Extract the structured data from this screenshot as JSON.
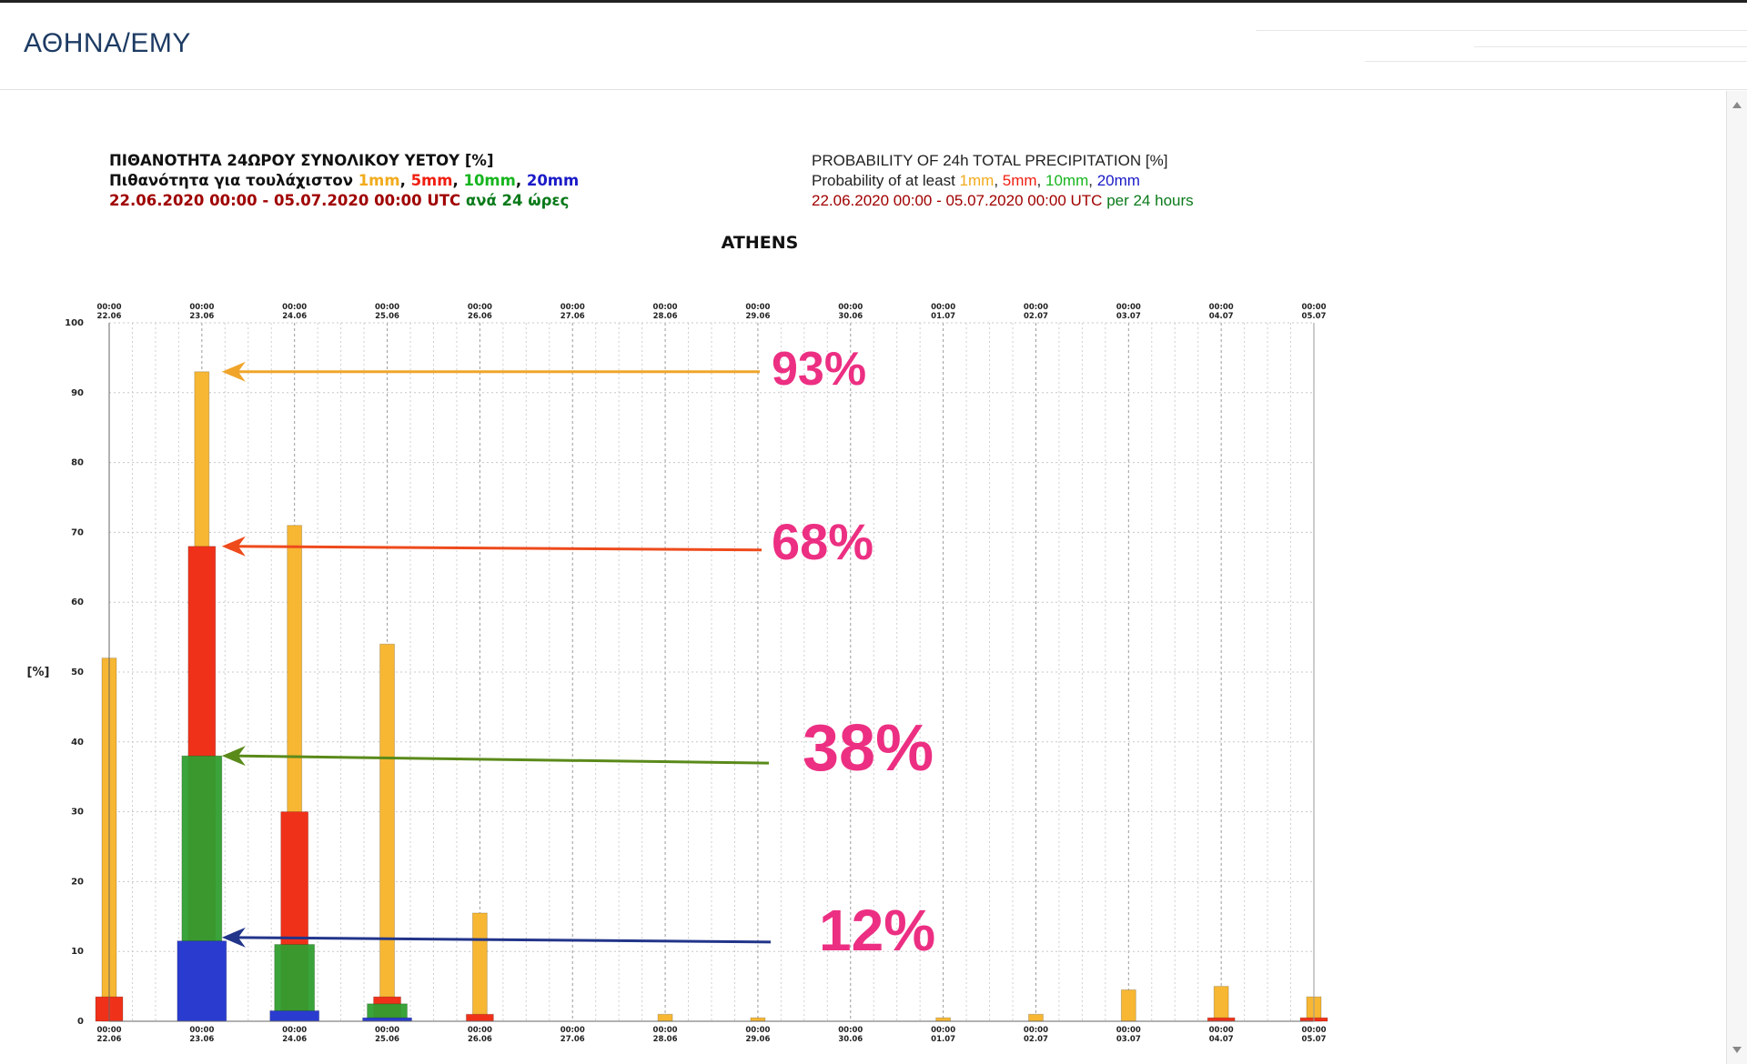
{
  "header": {
    "site_title": "ΑΘΗΝΑ/ΕΜΥ"
  },
  "heading_gr": {
    "line1": "ΠΙΘΑΝΟΤΗΤΑ 24ΩΡΟΥ ΣΥΝΟΛΙΚΟΥ ΥΕΤΟΥ [%]",
    "line2_prefix": "Πιθανότητα για τουλάχιστον ",
    "t1": "1mm",
    "t5": "5mm",
    "t10": "10mm",
    "t20": "20mm",
    "sep": ", ",
    "line3_dates": "22.06.2020 00:00 - 05.07.2020 00:00 UTC ",
    "line3_per": "ανά 24 ώρες"
  },
  "heading_en": {
    "line1": "PROBABILITY OF 24h TOTAL PRECIPITATION [%]",
    "line2_prefix": "Probability of at least ",
    "t1": "1mm",
    "t5": "5mm",
    "t10": "10mm",
    "t20": "20mm",
    "sep": ", ",
    "line3_dates": "22.06.2020 00:00 - 05.07.2020 00:00 UTC ",
    "line3_per": "per 24 hours"
  },
  "chart_data": {
    "type": "bar",
    "title": "ATHENS",
    "ylabel": "[%]",
    "ylim": [
      0,
      100
    ],
    "yticks": [
      0,
      10,
      20,
      30,
      40,
      50,
      60,
      70,
      80,
      90,
      100
    ],
    "time_label": "00:00",
    "categories": [
      "22.06",
      "23.06",
      "24.06",
      "25.06",
      "26.06",
      "27.06",
      "28.06",
      "29.06",
      "30.06",
      "01.07",
      "02.07",
      "03.07",
      "04.07",
      "05.07"
    ],
    "grid": true,
    "series": [
      {
        "name": "1mm",
        "color": "#f7b733",
        "values": [
          52,
          93,
          71,
          54,
          15.5,
          0,
          1,
          0.5,
          0,
          0.5,
          1,
          4.5,
          5,
          3.5
        ]
      },
      {
        "name": "5mm",
        "color": "#f0311a",
        "values": [
          3.5,
          68,
          30,
          3.5,
          1,
          0,
          0,
          0,
          0,
          0,
          0,
          0,
          0.5,
          0.5
        ]
      },
      {
        "name": "10mm",
        "color": "#2f9e2f",
        "values": [
          0,
          38,
          11,
          2.5,
          0,
          0,
          0,
          0,
          0,
          0,
          0,
          0,
          0,
          0
        ]
      },
      {
        "name": "20mm",
        "color": "#2a3ccf",
        "values": [
          0,
          11.5,
          1.5,
          0.5,
          0,
          0,
          0,
          0,
          0,
          0,
          0,
          0,
          0,
          0
        ]
      }
    ],
    "annotations": [
      {
        "text": "93%",
        "value": 93,
        "category": "23.06",
        "color": "#f0a52a"
      },
      {
        "text": "68%",
        "value": 68,
        "category": "23.06",
        "color": "#ee4a1c"
      },
      {
        "text": "38%",
        "value": 38,
        "category": "23.06",
        "color": "#5a8a1a"
      },
      {
        "text": "12%",
        "value": 12,
        "category": "23.06",
        "color": "#22358a"
      }
    ],
    "annotation_text_color": "#ec2f82"
  }
}
